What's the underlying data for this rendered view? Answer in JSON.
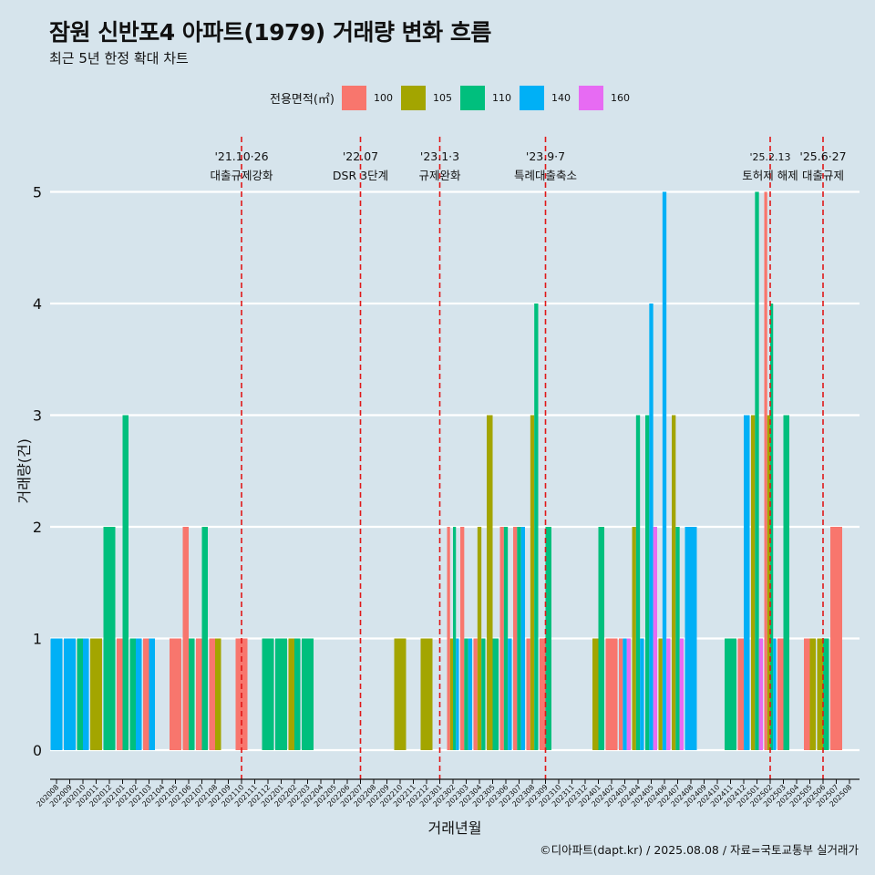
{
  "title": "잠원 신반포4 아파트(1979) 거래량 변화 흐름",
  "subtitle": "최근 5년 한정 확대 차트",
  "caption": "©디아파트(dapt.kr) / 2025.08.08 / 자료=국토교통부 실거래가",
  "chart_data": {
    "type": "bar",
    "xlabel": "거래년월",
    "ylabel": "거래량(건)",
    "ylim": [
      0,
      5
    ],
    "yticks": [
      "0",
      "1",
      "2",
      "3",
      "4",
      "5"
    ],
    "grid": true,
    "legend_title": "전용면적(㎡)",
    "legend_position": "top",
    "series": [
      {
        "name": "100",
        "color": "#F8766D"
      },
      {
        "name": "105",
        "color": "#A3A500"
      },
      {
        "name": "110",
        "color": "#00BF7D"
      },
      {
        "name": "140",
        "color": "#00B0F6"
      },
      {
        "name": "160",
        "color": "#E76BF3"
      }
    ],
    "categories": [
      "202008",
      "202009",
      "202010",
      "202011",
      "202012",
      "202101",
      "202102",
      "202103",
      "202104",
      "202105",
      "202106",
      "202107",
      "202108",
      "202109",
      "202110",
      "202111",
      "202112",
      "202201",
      "202202",
      "202203",
      "202204",
      "202205",
      "202206",
      "202207",
      "202208",
      "202209",
      "202210",
      "202211",
      "202212",
      "202301",
      "202302",
      "202303",
      "202304",
      "202305",
      "202306",
      "202307",
      "202308",
      "202309",
      "202310",
      "202311",
      "202312",
      "202401",
      "202402",
      "202403",
      "202404",
      "202405",
      "202406",
      "202407",
      "202408",
      "202409",
      "202410",
      "202411",
      "202412",
      "202501",
      "202502",
      "202503",
      "202504",
      "202505",
      "202506",
      "202507",
      "202508"
    ],
    "bars": [
      {
        "month": "202008",
        "values": {
          "140": 1
        }
      },
      {
        "month": "202009",
        "values": {
          "140": 1
        }
      },
      {
        "month": "202010",
        "values": {
          "110": 1,
          "140": 1
        }
      },
      {
        "month": "202011",
        "values": {
          "105": 1
        }
      },
      {
        "month": "202012",
        "values": {
          "110": 2
        }
      },
      {
        "month": "202101",
        "values": {
          "100": 1,
          "110": 3
        }
      },
      {
        "month": "202102",
        "values": {
          "110": 1,
          "140": 1
        }
      },
      {
        "month": "202103",
        "values": {
          "100": 1,
          "140": 1
        }
      },
      {
        "month": "202105",
        "values": {
          "100": 1
        }
      },
      {
        "month": "202106",
        "values": {
          "100": 2,
          "110": 1
        }
      },
      {
        "month": "202107",
        "values": {
          "100": 1,
          "110": 2
        }
      },
      {
        "month": "202108",
        "values": {
          "100": 1,
          "105": 1
        }
      },
      {
        "month": "202110",
        "values": {
          "100": 1
        }
      },
      {
        "month": "202112",
        "values": {
          "110": 1
        }
      },
      {
        "month": "202201",
        "values": {
          "110": 1
        }
      },
      {
        "month": "202202",
        "values": {
          "105": 1,
          "110": 1
        }
      },
      {
        "month": "202203",
        "values": {
          "110": 1
        }
      },
      {
        "month": "202210",
        "values": {
          "105": 1
        }
      },
      {
        "month": "202212",
        "values": {
          "105": 1
        }
      },
      {
        "month": "202302",
        "values": {
          "100": 2,
          "105": 1,
          "110": 2,
          "140": 1
        }
      },
      {
        "month": "202303",
        "values": {
          "100": 2,
          "110": 1,
          "140": 1
        }
      },
      {
        "month": "202304",
        "values": {
          "100": 1,
          "105": 2,
          "110": 1
        }
      },
      {
        "month": "202305",
        "values": {
          "105": 3,
          "110": 1
        }
      },
      {
        "month": "202306",
        "values": {
          "100": 2,
          "110": 2,
          "140": 1
        }
      },
      {
        "month": "202307",
        "values": {
          "100": 2,
          "110": 2,
          "140": 2
        }
      },
      {
        "month": "202308",
        "values": {
          "100": 1,
          "105": 3,
          "110": 4
        }
      },
      {
        "month": "202309",
        "values": {
          "100": 1,
          "110": 2
        }
      },
      {
        "month": "202401",
        "values": {
          "105": 1,
          "110": 2
        }
      },
      {
        "month": "202402",
        "values": {
          "100": 1
        }
      },
      {
        "month": "202403",
        "values": {
          "100": 1,
          "140": 1,
          "160": 1
        }
      },
      {
        "month": "202404",
        "values": {
          "105": 2,
          "110": 3,
          "140": 1
        }
      },
      {
        "month": "202405",
        "values": {
          "110": 3,
          "140": 4,
          "160": 2
        }
      },
      {
        "month": "202406",
        "values": {
          "105": 1,
          "140": 5,
          "160": 1
        }
      },
      {
        "month": "202407",
        "values": {
          "105": 3,
          "110": 2,
          "160": 1
        }
      },
      {
        "month": "202408",
        "values": {
          "140": 2
        }
      },
      {
        "month": "202411",
        "values": {
          "110": 1
        }
      },
      {
        "month": "202412",
        "values": {
          "100": 1,
          "140": 3
        }
      },
      {
        "month": "202501",
        "values": {
          "105": 3,
          "110": 5,
          "160": 1
        }
      },
      {
        "month": "202502",
        "values": {
          "100": 5,
          "105": 3,
          "110": 4,
          "140": 1
        }
      },
      {
        "month": "202503",
        "values": {
          "100": 1,
          "110": 3
        }
      },
      {
        "month": "202505",
        "values": {
          "100": 1,
          "105": 1
        }
      },
      {
        "month": "202506",
        "values": {
          "105": 1,
          "110": 1
        }
      },
      {
        "month": "202507",
        "values": {
          "100": 2
        }
      }
    ],
    "annotations": [
      {
        "month": "202110",
        "date": "'21.10·26",
        "text": "대출규제강화"
      },
      {
        "month": "202207",
        "date": "'22.07",
        "text": "DSR 3단계"
      },
      {
        "month": "202301",
        "date": "'23.1·3",
        "text": "규제완화"
      },
      {
        "month": "202309",
        "date": "'23.9·7",
        "text": "특례대출축소"
      },
      {
        "month": "202502",
        "date": "'25.2.13",
        "text": "토허제 해제"
      },
      {
        "month": "202506",
        "date": "'25.6·27",
        "text": "대출규제"
      }
    ]
  }
}
